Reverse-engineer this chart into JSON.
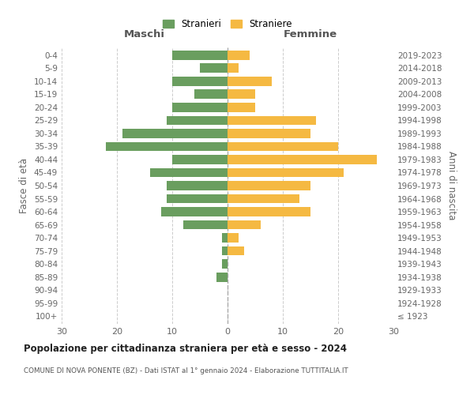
{
  "age_groups": [
    "100+",
    "95-99",
    "90-94",
    "85-89",
    "80-84",
    "75-79",
    "70-74",
    "65-69",
    "60-64",
    "55-59",
    "50-54",
    "45-49",
    "40-44",
    "35-39",
    "30-34",
    "25-29",
    "20-24",
    "15-19",
    "10-14",
    "5-9",
    "0-4"
  ],
  "birth_years": [
    "≤ 1923",
    "1924-1928",
    "1929-1933",
    "1934-1938",
    "1939-1943",
    "1944-1948",
    "1949-1953",
    "1954-1958",
    "1959-1963",
    "1964-1968",
    "1969-1973",
    "1974-1978",
    "1979-1983",
    "1984-1988",
    "1989-1993",
    "1994-1998",
    "1999-2003",
    "2004-2008",
    "2009-2013",
    "2014-2018",
    "2019-2023"
  ],
  "males": [
    0,
    0,
    0,
    2,
    1,
    1,
    1,
    8,
    12,
    11,
    11,
    14,
    10,
    22,
    19,
    11,
    10,
    6,
    10,
    5,
    10
  ],
  "females": [
    0,
    0,
    0,
    0,
    0,
    3,
    2,
    6,
    15,
    13,
    15,
    21,
    27,
    20,
    15,
    16,
    5,
    5,
    8,
    2,
    4
  ],
  "male_color": "#6a9e5f",
  "female_color": "#f5b942",
  "title": "Popolazione per cittadinanza straniera per età e sesso - 2024",
  "subtitle": "COMUNE DI NOVA PONENTE (BZ) - Dati ISTAT al 1° gennaio 2024 - Elaborazione TUTTITALIA.IT",
  "header_left": "Maschi",
  "header_right": "Femmine",
  "ylabel_left": "Fasce di età",
  "ylabel_right": "Anni di nascita",
  "legend_male": "Stranieri",
  "legend_female": "Straniere",
  "xlim": 30,
  "background_color": "#ffffff",
  "grid_color": "#cccccc"
}
